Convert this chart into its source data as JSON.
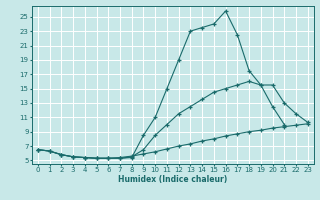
{
  "bg_color": "#c8e8e8",
  "grid_color": "#aacccc",
  "line_color": "#1a6b6b",
  "xlabel": "Humidex (Indice chaleur)",
  "xlim": [
    -0.5,
    23.5
  ],
  "ylim": [
    4.5,
    26.5
  ],
  "yticks": [
    5,
    7,
    9,
    11,
    13,
    15,
    17,
    19,
    21,
    23,
    25
  ],
  "xticks": [
    0,
    1,
    2,
    3,
    4,
    5,
    6,
    7,
    8,
    9,
    10,
    11,
    12,
    13,
    14,
    15,
    16,
    17,
    18,
    19,
    20,
    21,
    22,
    23
  ],
  "line1_x": [
    0,
    1,
    2,
    3,
    4,
    5,
    6,
    7,
    8,
    9,
    10,
    11,
    12,
    13,
    14,
    15,
    16,
    17,
    18,
    19,
    20,
    21
  ],
  "line1_y": [
    6.5,
    6.3,
    5.8,
    5.5,
    5.4,
    5.3,
    5.3,
    5.3,
    5.4,
    8.5,
    11.0,
    15.0,
    19.0,
    23.0,
    23.5,
    24.0,
    25.8,
    22.5,
    17.5,
    15.5,
    12.5,
    10.0
  ],
  "line2_x": [
    0,
    1,
    2,
    3,
    4,
    5,
    6,
    7,
    8,
    9,
    10,
    11,
    12,
    13,
    14,
    15,
    16,
    17,
    18,
    19,
    20,
    21,
    22,
    23
  ],
  "line2_y": [
    6.5,
    6.3,
    5.8,
    5.5,
    5.4,
    5.3,
    5.3,
    5.3,
    5.5,
    6.5,
    8.5,
    10.0,
    11.5,
    12.5,
    13.5,
    14.5,
    15.0,
    15.5,
    16.0,
    15.5,
    15.5,
    13.0,
    11.5,
    10.3
  ],
  "line3_x": [
    0,
    1,
    2,
    3,
    4,
    5,
    6,
    7,
    8,
    9,
    10,
    11,
    12,
    13,
    14,
    15,
    16,
    17,
    18,
    19,
    20,
    21,
    22,
    23
  ],
  "line3_y": [
    6.5,
    6.3,
    5.8,
    5.5,
    5.4,
    5.3,
    5.3,
    5.4,
    5.6,
    5.9,
    6.2,
    6.6,
    7.0,
    7.3,
    7.7,
    8.0,
    8.4,
    8.7,
    9.0,
    9.2,
    9.5,
    9.7,
    9.9,
    10.1
  ]
}
